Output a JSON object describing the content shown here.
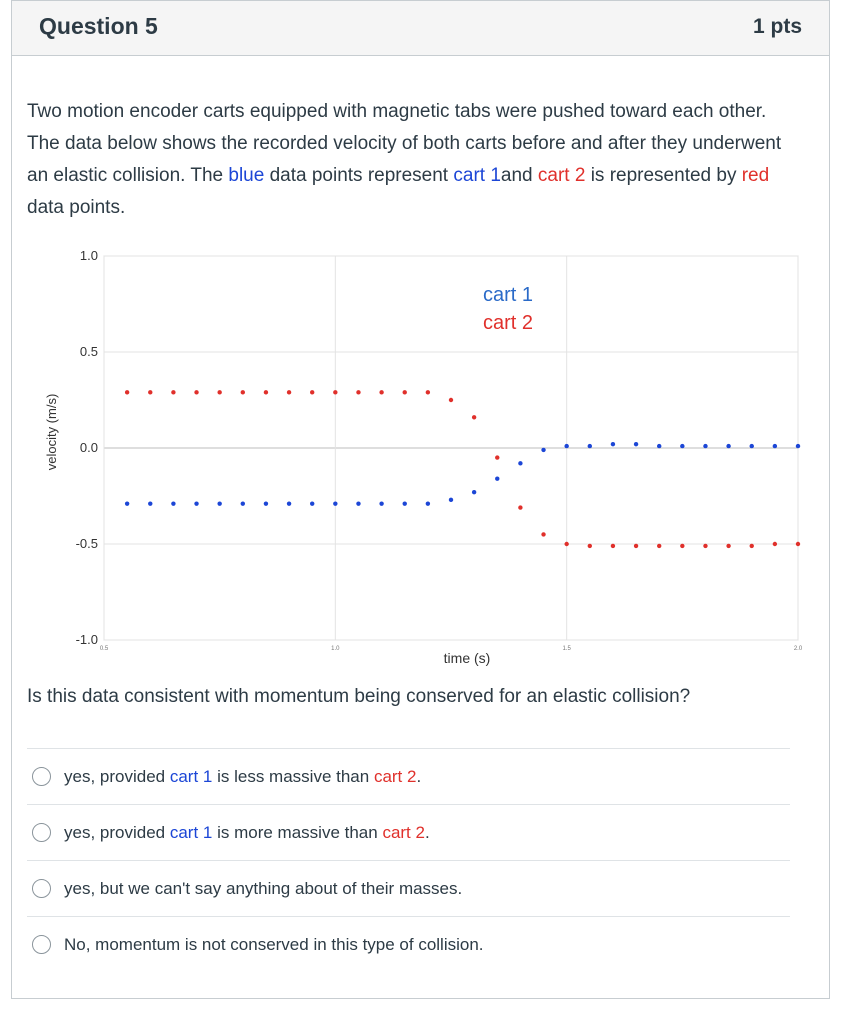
{
  "header": {
    "title": "Question 5",
    "points": "1 pts"
  },
  "prompt": {
    "text_a": "Two motion encoder carts equipped with magnetic tabs were pushed toward each other. The data below shows the recorded velocity of both carts before and after they underwent an elastic collision. The ",
    "blue_word": "blue",
    "text_b": " data points represent ",
    "cart1": "cart 1",
    "text_c": "and ",
    "cart2": "cart 2",
    "text_d": "  is represented by ",
    "red_word": "red",
    "text_e": " data points."
  },
  "chart_data": {
    "type": "scatter",
    "xlabel": "time (s)",
    "ylabel": "velocity (m/s)",
    "xlim": [
      0.5,
      2.0
    ],
    "ylim": [
      -1.0,
      1.0
    ],
    "yticks": [
      "1.0",
      "0.5",
      "0.0",
      "-0.5",
      "-1.0"
    ],
    "xticks": [
      "0.5",
      "1.0",
      "1.5",
      "2.0"
    ],
    "legend": [
      "cart 1",
      "cart 2"
    ],
    "colors": {
      "cart1": "#1c46d6",
      "cart2": "#e0302b"
    },
    "series": [
      {
        "name": "cart 1",
        "color": "#1c46d6",
        "x": [
          0.55,
          0.6,
          0.65,
          0.7,
          0.75,
          0.8,
          0.85,
          0.9,
          0.95,
          1.0,
          1.05,
          1.1,
          1.15,
          1.2,
          1.25,
          1.3,
          1.35,
          1.4,
          1.45,
          1.5,
          1.55,
          1.6,
          1.65,
          1.7,
          1.75,
          1.8,
          1.85,
          1.9,
          1.95,
          2.0
        ],
        "values": [
          -0.29,
          -0.29,
          -0.29,
          -0.29,
          -0.29,
          -0.29,
          -0.29,
          -0.29,
          -0.29,
          -0.29,
          -0.29,
          -0.29,
          -0.29,
          -0.29,
          -0.27,
          -0.23,
          -0.16,
          -0.08,
          -0.01,
          0.01,
          0.01,
          0.02,
          0.02,
          0.01,
          0.01,
          0.01,
          0.01,
          0.01,
          0.01,
          0.01
        ]
      },
      {
        "name": "cart 2",
        "color": "#e0302b",
        "x": [
          0.55,
          0.6,
          0.65,
          0.7,
          0.75,
          0.8,
          0.85,
          0.9,
          0.95,
          1.0,
          1.05,
          1.1,
          1.15,
          1.2,
          1.25,
          1.3,
          1.35,
          1.4,
          1.45,
          1.5,
          1.55,
          1.6,
          1.65,
          1.7,
          1.75,
          1.8,
          1.85,
          1.9,
          1.95,
          2.0
        ],
        "values": [
          0.29,
          0.29,
          0.29,
          0.29,
          0.29,
          0.29,
          0.29,
          0.29,
          0.29,
          0.29,
          0.29,
          0.29,
          0.29,
          0.29,
          0.25,
          0.16,
          -0.05,
          -0.31,
          -0.45,
          -0.5,
          -0.51,
          -0.51,
          -0.51,
          -0.51,
          -0.51,
          -0.51,
          -0.51,
          -0.51,
          -0.5,
          -0.5
        ]
      }
    ]
  },
  "question": "Is this data consistent with momentum being conserved for an elastic collision?",
  "answers": [
    {
      "pre": "yes, provided ",
      "cart1": "cart 1",
      "mid": " is less massive than ",
      "cart2": "cart 2",
      "post": "."
    },
    {
      "pre": "yes, provided ",
      "cart1": "cart 1",
      "mid": " is more massive than ",
      "cart2": "cart 2",
      "post": "."
    },
    {
      "text": "yes, but we can't say anything about of their masses."
    },
    {
      "text": "No, momentum is not conserved in this type of collision."
    }
  ]
}
